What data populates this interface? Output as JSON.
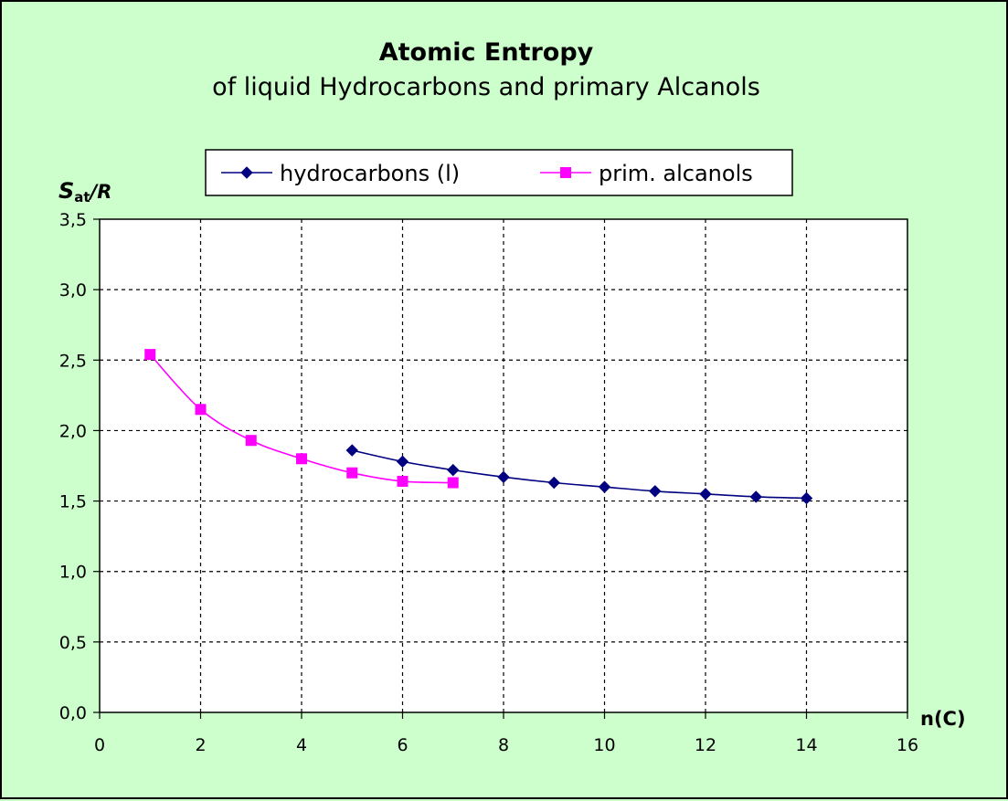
{
  "chart_data": {
    "type": "line",
    "title": "Atomic Entropy",
    "subtitle": "of liquid Hydrocarbons and primary Alcanols",
    "xlabel": "n(C)",
    "ylabel": {
      "main": "S",
      "subscript": "at",
      "suffix": "/R"
    },
    "xlim": [
      0,
      16
    ],
    "ylim": [
      0,
      3.5
    ],
    "x_ticks": [
      "0",
      "2",
      "4",
      "6",
      "8",
      "10",
      "12",
      "14",
      "16"
    ],
    "y_ticks": [
      "0,0",
      "0,5",
      "1,0",
      "1,5",
      "2,0",
      "2,5",
      "3,0",
      "3,5"
    ],
    "grid": true,
    "legend_position": "top-center",
    "series": [
      {
        "name": "hydrocarbons (l)",
        "color": "#000080",
        "marker": "diamond",
        "x": [
          5,
          6,
          7,
          8,
          9,
          10,
          11,
          12,
          13,
          14
        ],
        "y": [
          1.86,
          1.78,
          1.72,
          1.67,
          1.63,
          1.6,
          1.57,
          1.55,
          1.53,
          1.52
        ]
      },
      {
        "name": "prim. alcanols",
        "color": "#ff00ff",
        "marker": "square",
        "x": [
          1,
          2,
          3,
          4,
          5,
          6,
          7
        ],
        "y": [
          2.54,
          2.15,
          1.93,
          1.8,
          1.7,
          1.64,
          1.63
        ]
      }
    ]
  }
}
